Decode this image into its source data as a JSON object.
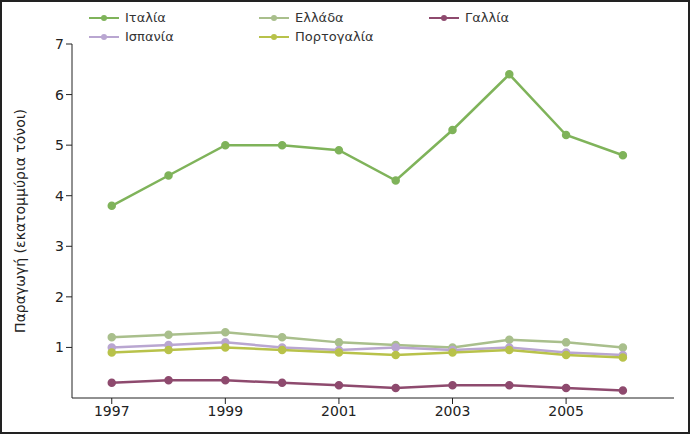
{
  "chart_data": {
    "type": "line",
    "y_label": "Παραγωγή (εκατομμύρια τόνοι)",
    "x": [
      1997,
      1998,
      1999,
      2000,
      2001,
      2002,
      2003,
      2004,
      2005,
      2006
    ],
    "xlim": [
      1996.3,
      2006.9
    ],
    "xticks": [
      1997,
      1999,
      2001,
      2003,
      2005
    ],
    "ylim": [
      0,
      7
    ],
    "yticks": [
      1,
      2,
      3,
      4,
      5,
      6,
      7
    ],
    "grid": false,
    "legend": "top",
    "marker": "circle",
    "line_style": "solid",
    "series": [
      {
        "name": "Ιταλία",
        "color": "#7fb35a",
        "values": [
          3.8,
          4.4,
          5.0,
          5.0,
          4.9,
          4.3,
          5.3,
          6.4,
          5.2,
          4.8
        ]
      },
      {
        "name": "Ελλάδα",
        "color": "#a9bf8c",
        "values": [
          1.2,
          1.25,
          1.3,
          1.2,
          1.1,
          1.05,
          1.0,
          1.15,
          1.1,
          1.0
        ]
      },
      {
        "name": "Γαλλία",
        "color": "#8e4a6e",
        "values": [
          0.3,
          0.35,
          0.35,
          0.3,
          0.25,
          0.2,
          0.25,
          0.25,
          0.2,
          0.15
        ]
      },
      {
        "name": "Ισπανία",
        "color": "#b9a6d1",
        "values": [
          1.0,
          1.05,
          1.1,
          1.0,
          0.95,
          1.0,
          0.95,
          1.0,
          0.9,
          0.85
        ]
      },
      {
        "name": "Πορτογαλία",
        "color": "#b8c24a",
        "values": [
          0.9,
          0.95,
          1.0,
          0.95,
          0.9,
          0.85,
          0.9,
          0.95,
          0.85,
          0.8
        ]
      }
    ]
  }
}
